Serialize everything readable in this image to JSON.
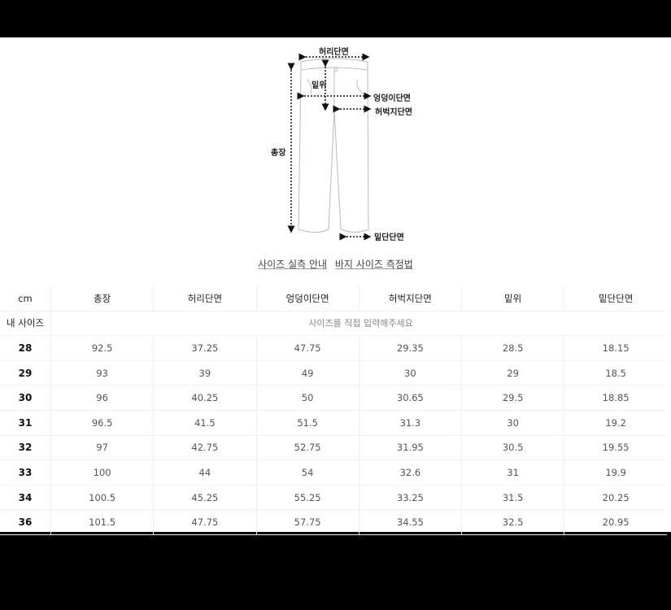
{
  "diagram": {
    "labels": {
      "waist": "허리단면",
      "rise": "밑위",
      "hip": "엉덩이단면",
      "thigh": "허벅지단면",
      "length": "총장",
      "hem": "밑단단면"
    }
  },
  "links": [
    "사이즈 실측 안내",
    "바지 사이즈 측정법"
  ],
  "table": {
    "unit": "cm",
    "headers": [
      "총장",
      "허리단면",
      "엉덩이단면",
      "허벅지단면",
      "밑위",
      "밑단단면"
    ],
    "my_size_label": "내 사이즈",
    "my_size_placeholder": "사이즈를 직접 입력해주세요",
    "rows": [
      {
        "size": "28",
        "values": [
          "92.5",
          "37.25",
          "47.75",
          "29.35",
          "28.5",
          "18.15"
        ]
      },
      {
        "size": "29",
        "values": [
          "93",
          "39",
          "49",
          "30",
          "29",
          "18.5"
        ]
      },
      {
        "size": "30",
        "values": [
          "96",
          "40.25",
          "50",
          "30.65",
          "29.5",
          "18.85"
        ]
      },
      {
        "size": "31",
        "values": [
          "96.5",
          "41.5",
          "51.5",
          "31.3",
          "30",
          "19.2"
        ]
      },
      {
        "size": "32",
        "values": [
          "97",
          "42.75",
          "52.75",
          "31.95",
          "30.5",
          "19.55"
        ]
      },
      {
        "size": "33",
        "values": [
          "100",
          "44",
          "54",
          "32.6",
          "31",
          "19.9"
        ]
      },
      {
        "size": "34",
        "values": [
          "100.5",
          "45.25",
          "55.25",
          "33.25",
          "31.5",
          "20.25"
        ]
      },
      {
        "size": "36",
        "values": [
          "101.5",
          "47.75",
          "57.75",
          "34.55",
          "32.5",
          "20.95"
        ]
      }
    ]
  }
}
